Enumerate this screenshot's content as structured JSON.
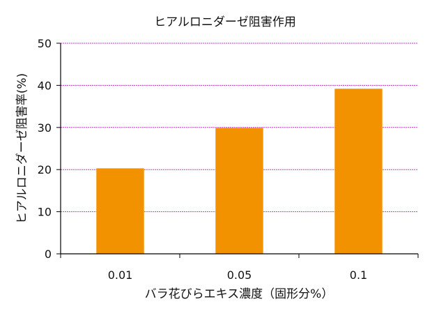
{
  "chart_data": {
    "type": "bar",
    "title": "ヒアルロニダーゼ阻害作用",
    "xlabel": "バラ花びらエキス濃度（固形分%）",
    "ylabel": "ヒアルロニダーゼ阻害率(%)",
    "categories": [
      "0.01",
      "0.05",
      "0.1"
    ],
    "values": [
      20.3,
      29.9,
      39.2
    ],
    "ylim": [
      0,
      50
    ],
    "yticks": [
      0,
      10,
      20,
      30,
      40,
      50
    ],
    "grid": true,
    "grid_color": "#cc33cc",
    "bar_color": "#f39200",
    "axis_color": "#000000"
  }
}
